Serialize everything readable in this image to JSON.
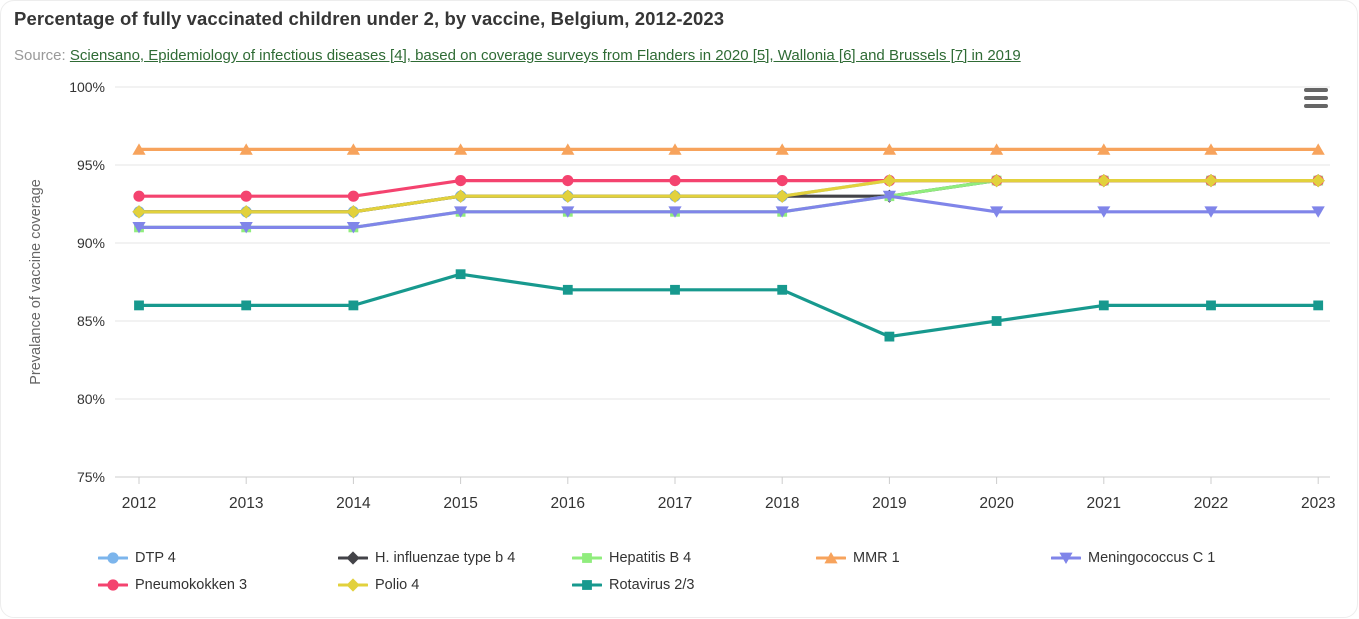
{
  "header": {
    "title": "Percentage of fully vaccinated children under 2, by vaccine, Belgium, 2012-2023",
    "source_prefix": "Source: ",
    "source_link": "Sciensano, Epidemiology of infectious diseases [4], based on coverage surveys from Flanders in 2020 [5], Wallonia [6] and Brussels [7] in 2019"
  },
  "chart": {
    "menu_icon": "hamburger-icon",
    "grid_color": "#e6e6e6",
    "axis_line_color": "#cccccc",
    "tick_label_color": "#333333",
    "axis_title_color": "#666666"
  },
  "chart_data": {
    "type": "line",
    "title": "Percentage of fully vaccinated children under 2, by vaccine, Belgium, 2012-2023",
    "x": [
      2012,
      2013,
      2014,
      2015,
      2016,
      2017,
      2018,
      2019,
      2020,
      2021,
      2022,
      2023
    ],
    "xlabel": "",
    "ylabel": "Prevalance of vaccine coverage",
    "ylim": [
      75,
      100
    ],
    "yticks": [
      75,
      80,
      85,
      90,
      95,
      100
    ],
    "ytick_suffix": "%",
    "grid": "horizontal",
    "legend_position": "bottom",
    "series": [
      {
        "name": "DTP 4",
        "color": "#7cb5ec",
        "marker": "circle",
        "values": [
          92,
          92,
          92,
          93,
          93,
          93,
          93,
          94,
          94,
          94,
          94,
          94
        ]
      },
      {
        "name": "H. influenzae type b 4",
        "color": "#434348",
        "marker": "diamond",
        "values": [
          92,
          92,
          92,
          93,
          93,
          93,
          93,
          93,
          94,
          94,
          94,
          94
        ]
      },
      {
        "name": "Hepatitis B 4",
        "color": "#90ed7d",
        "marker": "square",
        "values": [
          91,
          91,
          91,
          92,
          92,
          92,
          92,
          93,
          94,
          94,
          94,
          94
        ]
      },
      {
        "name": "MMR 1",
        "color": "#f7a35c",
        "marker": "triangle",
        "values": [
          96,
          96,
          96,
          96,
          96,
          96,
          96,
          96,
          96,
          96,
          96,
          96
        ]
      },
      {
        "name": "Meningococcus C 1",
        "color": "#8085e9",
        "marker": "triangle-down",
        "values": [
          91,
          91,
          91,
          92,
          92,
          92,
          92,
          93,
          92,
          92,
          92,
          92
        ]
      },
      {
        "name": "Pneumokokken 3",
        "color": "#f4436f",
        "marker": "circle",
        "values": [
          93,
          93,
          93,
          94,
          94,
          94,
          94,
          94,
          94,
          94,
          94,
          94
        ]
      },
      {
        "name": "Polio 4",
        "color": "#e2d13c",
        "marker": "diamond",
        "values": [
          92,
          92,
          92,
          93,
          93,
          93,
          93,
          94,
          94,
          94,
          94,
          94
        ]
      },
      {
        "name": "Rotavirus 2/3",
        "color": "#17998e",
        "marker": "square",
        "values": [
          86,
          86,
          86,
          88,
          87,
          87,
          87,
          84,
          85,
          86,
          86,
          86
        ]
      }
    ]
  }
}
